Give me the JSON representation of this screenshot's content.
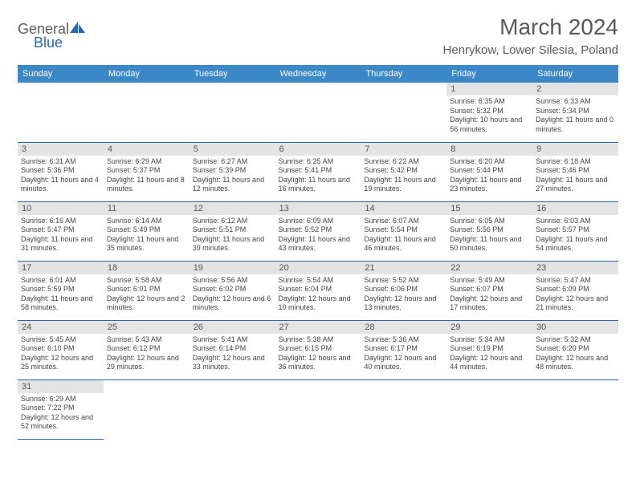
{
  "logo": {
    "word1": "General",
    "word2": "Blue"
  },
  "title": "March 2024",
  "location": "Henrykow, Lower Silesia, Poland",
  "colors": {
    "header_bg": "#3c87c8",
    "border": "#2968b0",
    "daynum_bg": "#e4e4e4",
    "text": "#444444",
    "title_text": "#5a5a5a"
  },
  "dow": [
    "Sunday",
    "Monday",
    "Tuesday",
    "Wednesday",
    "Thursday",
    "Friday",
    "Saturday"
  ],
  "weeks": [
    [
      null,
      null,
      null,
      null,
      null,
      {
        "n": "1",
        "sr": "Sunrise: 6:35 AM",
        "ss": "Sunset: 5:32 PM",
        "dl": "Daylight: 10 hours and 56 minutes."
      },
      {
        "n": "2",
        "sr": "Sunrise: 6:33 AM",
        "ss": "Sunset: 5:34 PM",
        "dl": "Daylight: 11 hours and 0 minutes."
      }
    ],
    [
      {
        "n": "3",
        "sr": "Sunrise: 6:31 AM",
        "ss": "Sunset: 5:36 PM",
        "dl": "Daylight: 11 hours and 4 minutes."
      },
      {
        "n": "4",
        "sr": "Sunrise: 6:29 AM",
        "ss": "Sunset: 5:37 PM",
        "dl": "Daylight: 11 hours and 8 minutes."
      },
      {
        "n": "5",
        "sr": "Sunrise: 6:27 AM",
        "ss": "Sunset: 5:39 PM",
        "dl": "Daylight: 11 hours and 12 minutes."
      },
      {
        "n": "6",
        "sr": "Sunrise: 6:25 AM",
        "ss": "Sunset: 5:41 PM",
        "dl": "Daylight: 11 hours and 16 minutes."
      },
      {
        "n": "7",
        "sr": "Sunrise: 6:22 AM",
        "ss": "Sunset: 5:42 PM",
        "dl": "Daylight: 11 hours and 19 minutes."
      },
      {
        "n": "8",
        "sr": "Sunrise: 6:20 AM",
        "ss": "Sunset: 5:44 PM",
        "dl": "Daylight: 11 hours and 23 minutes."
      },
      {
        "n": "9",
        "sr": "Sunrise: 6:18 AM",
        "ss": "Sunset: 5:46 PM",
        "dl": "Daylight: 11 hours and 27 minutes."
      }
    ],
    [
      {
        "n": "10",
        "sr": "Sunrise: 6:16 AM",
        "ss": "Sunset: 5:47 PM",
        "dl": "Daylight: 11 hours and 31 minutes."
      },
      {
        "n": "11",
        "sr": "Sunrise: 6:14 AM",
        "ss": "Sunset: 5:49 PM",
        "dl": "Daylight: 11 hours and 35 minutes."
      },
      {
        "n": "12",
        "sr": "Sunrise: 6:12 AM",
        "ss": "Sunset: 5:51 PM",
        "dl": "Daylight: 11 hours and 39 minutes."
      },
      {
        "n": "13",
        "sr": "Sunrise: 6:09 AM",
        "ss": "Sunset: 5:52 PM",
        "dl": "Daylight: 11 hours and 43 minutes."
      },
      {
        "n": "14",
        "sr": "Sunrise: 6:07 AM",
        "ss": "Sunset: 5:54 PM",
        "dl": "Daylight: 11 hours and 46 minutes."
      },
      {
        "n": "15",
        "sr": "Sunrise: 6:05 AM",
        "ss": "Sunset: 5:56 PM",
        "dl": "Daylight: 11 hours and 50 minutes."
      },
      {
        "n": "16",
        "sr": "Sunrise: 6:03 AM",
        "ss": "Sunset: 5:57 PM",
        "dl": "Daylight: 11 hours and 54 minutes."
      }
    ],
    [
      {
        "n": "17",
        "sr": "Sunrise: 6:01 AM",
        "ss": "Sunset: 5:59 PM",
        "dl": "Daylight: 11 hours and 58 minutes."
      },
      {
        "n": "18",
        "sr": "Sunrise: 5:58 AM",
        "ss": "Sunset: 6:01 PM",
        "dl": "Daylight: 12 hours and 2 minutes."
      },
      {
        "n": "19",
        "sr": "Sunrise: 5:56 AM",
        "ss": "Sunset: 6:02 PM",
        "dl": "Daylight: 12 hours and 6 minutes."
      },
      {
        "n": "20",
        "sr": "Sunrise: 5:54 AM",
        "ss": "Sunset: 6:04 PM",
        "dl": "Daylight: 12 hours and 10 minutes."
      },
      {
        "n": "21",
        "sr": "Sunrise: 5:52 AM",
        "ss": "Sunset: 6:06 PM",
        "dl": "Daylight: 12 hours and 13 minutes."
      },
      {
        "n": "22",
        "sr": "Sunrise: 5:49 AM",
        "ss": "Sunset: 6:07 PM",
        "dl": "Daylight: 12 hours and 17 minutes."
      },
      {
        "n": "23",
        "sr": "Sunrise: 5:47 AM",
        "ss": "Sunset: 6:09 PM",
        "dl": "Daylight: 12 hours and 21 minutes."
      }
    ],
    [
      {
        "n": "24",
        "sr": "Sunrise: 5:45 AM",
        "ss": "Sunset: 6:10 PM",
        "dl": "Daylight: 12 hours and 25 minutes."
      },
      {
        "n": "25",
        "sr": "Sunrise: 5:43 AM",
        "ss": "Sunset: 6:12 PM",
        "dl": "Daylight: 12 hours and 29 minutes."
      },
      {
        "n": "26",
        "sr": "Sunrise: 5:41 AM",
        "ss": "Sunset: 6:14 PM",
        "dl": "Daylight: 12 hours and 33 minutes."
      },
      {
        "n": "27",
        "sr": "Sunrise: 5:38 AM",
        "ss": "Sunset: 6:15 PM",
        "dl": "Daylight: 12 hours and 36 minutes."
      },
      {
        "n": "28",
        "sr": "Sunrise: 5:36 AM",
        "ss": "Sunset: 6:17 PM",
        "dl": "Daylight: 12 hours and 40 minutes."
      },
      {
        "n": "29",
        "sr": "Sunrise: 5:34 AM",
        "ss": "Sunset: 6:19 PM",
        "dl": "Daylight: 12 hours and 44 minutes."
      },
      {
        "n": "30",
        "sr": "Sunrise: 5:32 AM",
        "ss": "Sunset: 6:20 PM",
        "dl": "Daylight: 12 hours and 48 minutes."
      }
    ],
    [
      {
        "n": "31",
        "sr": "Sunrise: 6:29 AM",
        "ss": "Sunset: 7:22 PM",
        "dl": "Daylight: 12 hours and 52 minutes."
      },
      null,
      null,
      null,
      null,
      null,
      null
    ]
  ]
}
